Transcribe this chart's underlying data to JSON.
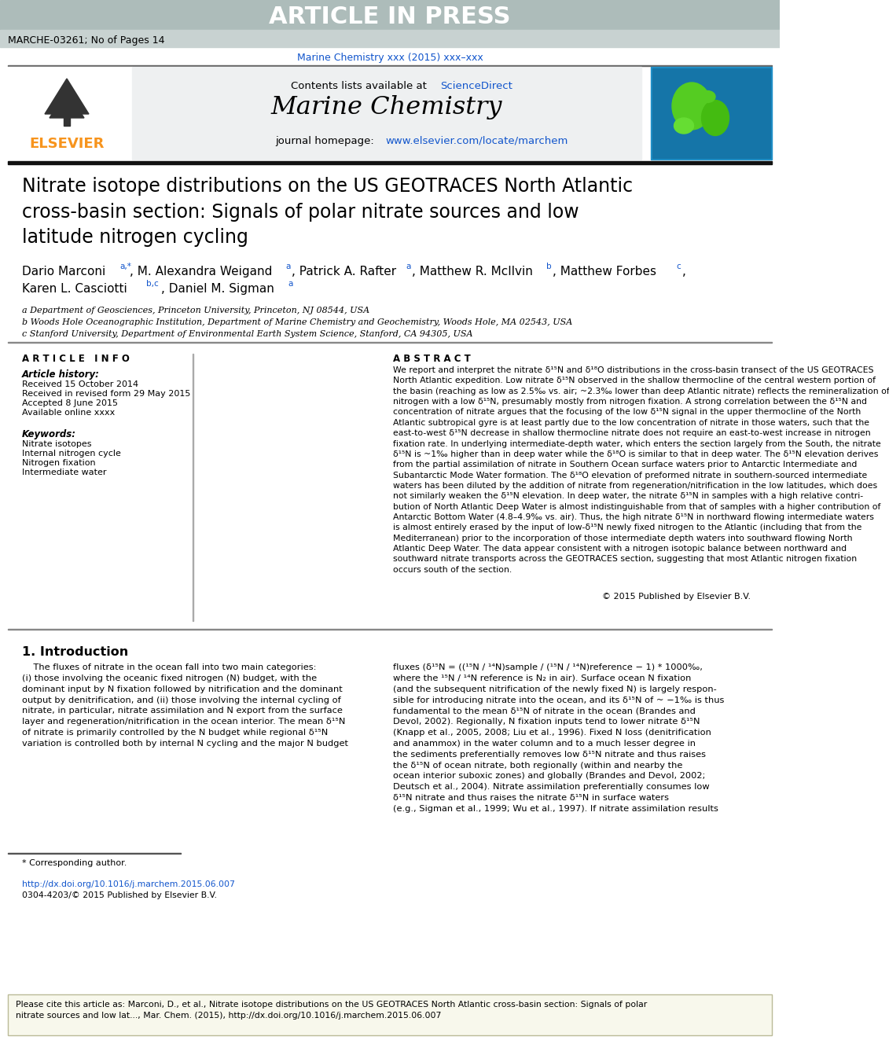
{
  "article_in_press_text": "ARTICLE IN PRESS",
  "article_code": "MARCHE-03261; No of Pages 14",
  "journal_ref": "Marine Chemistry xxx (2015) xxx–xxx",
  "journal_name": "Marine Chemistry",
  "contents_text": "Contents lists available at",
  "sciencedirect": "ScienceDirect",
  "homepage_text": "journal homepage:",
  "homepage_url": "www.elsevier.com/locate/marchem",
  "elsevier_color": "#F7941D",
  "link_color": "#1155CC",
  "title": "Nitrate isotope distributions on the US GEOTRACES North Atlantic\ncross-basin section: Signals of polar nitrate sources and low\nlatitude nitrogen cycling",
  "affil_a": "a Department of Geosciences, Princeton University, Princeton, NJ 08544, USA",
  "affil_b": "b Woods Hole Oceanographic Institution, Department of Marine Chemistry and Geochemistry, Woods Hole, MA 02543, USA",
  "affil_c": "c Stanford University, Department of Environmental Earth System Science, Stanford, CA 94305, USA",
  "article_info_title": "A R T I C L E   I N F O",
  "article_history_title": "Article history:",
  "received1": "Received 15 October 2014",
  "revised": "Received in revised form 29 May 2015",
  "accepted": "Accepted 8 June 2015",
  "available": "Available online xxxx",
  "keywords_title": "Keywords:",
  "kw1": "Nitrate isotopes",
  "kw2": "Internal nitrogen cycle",
  "kw3": "Nitrogen fixation",
  "kw4": "Intermediate water",
  "abstract_title": "A B S T R A C T",
  "abstract_text": "We report and interpret the nitrate δ¹⁵N and δ¹⁸O distributions in the cross-basin transect of the US GEOTRACES\nNorth Atlantic expedition. Low nitrate δ¹⁵N observed in the shallow thermocline of the central western portion of\nthe basin (reaching as low as 2.5‰ vs. air; ~2.3‰ lower than deep Atlantic nitrate) reflects the remineralization of\nnitrogen with a low δ¹⁵N, presumably mostly from nitrogen fixation. A strong correlation between the δ¹⁵N and\nconcentration of nitrate argues that the focusing of the low δ¹⁵N signal in the upper thermocline of the North\nAtlantic subtropical gyre is at least partly due to the low concentration of nitrate in those waters, such that the\neast-to-west δ¹⁵N decrease in shallow thermocline nitrate does not require an east-to-west increase in nitrogen\nfixation rate. In underlying intermediate-depth water, which enters the section largely from the South, the nitrate\nδ¹⁵N is ~1‰ higher than in deep water while the δ¹⁸O is similar to that in deep water. The δ¹⁵N elevation derives\nfrom the partial assimilation of nitrate in Southern Ocean surface waters prior to Antarctic Intermediate and\nSubantarctic Mode Water formation. The δ¹⁸O elevation of preformed nitrate in southern-sourced intermediate\nwaters has been diluted by the addition of nitrate from regeneration/nitrification in the low latitudes, which does\nnot similarly weaken the δ¹⁵N elevation. In deep water, the nitrate δ¹⁵N in samples with a high relative contri-\nbution of North Atlantic Deep Water is almost indistinguishable from that of samples with a higher contribution of\nAntarctic Bottom Water (4.8–4.9‰ vs. air). Thus, the high nitrate δ¹⁵N in northward flowing intermediate waters\nis almost entirely erased by the input of low-δ¹⁵N newly fixed nitrogen to the Atlantic (including that from the\nMediterranean) prior to the incorporation of those intermediate depth waters into southward flowing North\nAtlantic Deep Water. The data appear consistent with a nitrogen isotopic balance between northward and\nsouthward nitrate transports across the GEOTRACES section, suggesting that most Atlantic nitrogen fixation\noccurs south of the section.",
  "copyright_text": "© 2015 Published by Elsevier B.V.",
  "section1_title": "1. Introduction",
  "intro_text_left": "    The fluxes of nitrate in the ocean fall into two main categories:\n(i) those involving the oceanic fixed nitrogen (N) budget, with the\ndominant input by N fixation followed by nitrification and the dominant\noutput by denitrification, and (ii) those involving the internal cycling of\nnitrate, in particular, nitrate assimilation and N export from the surface\nlayer and regeneration/nitrification in the ocean interior. The mean δ¹⁵N\nof nitrate is primarily controlled by the N budget while regional δ¹⁵N\nvariation is controlled both by internal N cycling and the major N budget",
  "intro_text_right": "fluxes (δ¹⁵N = ((¹⁵N / ¹⁴N)sample / (¹⁵N / ¹⁴N)reference − 1) * 1000‰,\nwhere the ¹⁵N / ¹⁴N reference is N₂ in air). Surface ocean N fixation\n(and the subsequent nitrification of the newly fixed N) is largely respon-\nsible for introducing nitrate into the ocean, and its δ¹⁵N of ~ −1‰ is thus\nfundamental to the mean δ¹⁵N of nitrate in the ocean (Brandes and\nDevol, 2002). Regionally, N fixation inputs tend to lower nitrate δ¹⁵N\n(Knapp et al., 2005, 2008; Liu et al., 1996). Fixed N loss (denitrification\nand anammox) in the water column and to a much lesser degree in\nthe sediments preferentially removes low δ¹⁵N nitrate and thus raises\nthe δ¹⁵N of ocean nitrate, both regionally (within and nearby the\nocean interior suboxic zones) and globally (Brandes and Devol, 2002;\nDeutsch et al., 2004). Nitrate assimilation preferentially consumes low\nδ¹⁵N nitrate and thus raises the nitrate δ¹⁵N in surface waters\n(e.g., Sigman et al., 1999; Wu et al., 1997). If nitrate assimilation results",
  "footnote_star": "* Corresponding author.",
  "doi_text": "http://dx.doi.org/10.1016/j.marchem.2015.06.007",
  "issn_text": "0304-4203/© 2015 Published by Elsevier B.V.",
  "cite_box_text": "Please cite this article as: Marconi, D., et al., Nitrate isotope distributions on the US GEOTRACES North Atlantic cross-basin section: Signals of polar\nnitrate sources and low lat..., Mar. Chem. (2015), http://dx.doi.org/10.1016/j.marchem.2015.06.007",
  "bg_white": "#ffffff",
  "header_bg": "#adbcba",
  "subheader_bg": "#c8d2d1",
  "journal_header_bg": "#eef0f1"
}
